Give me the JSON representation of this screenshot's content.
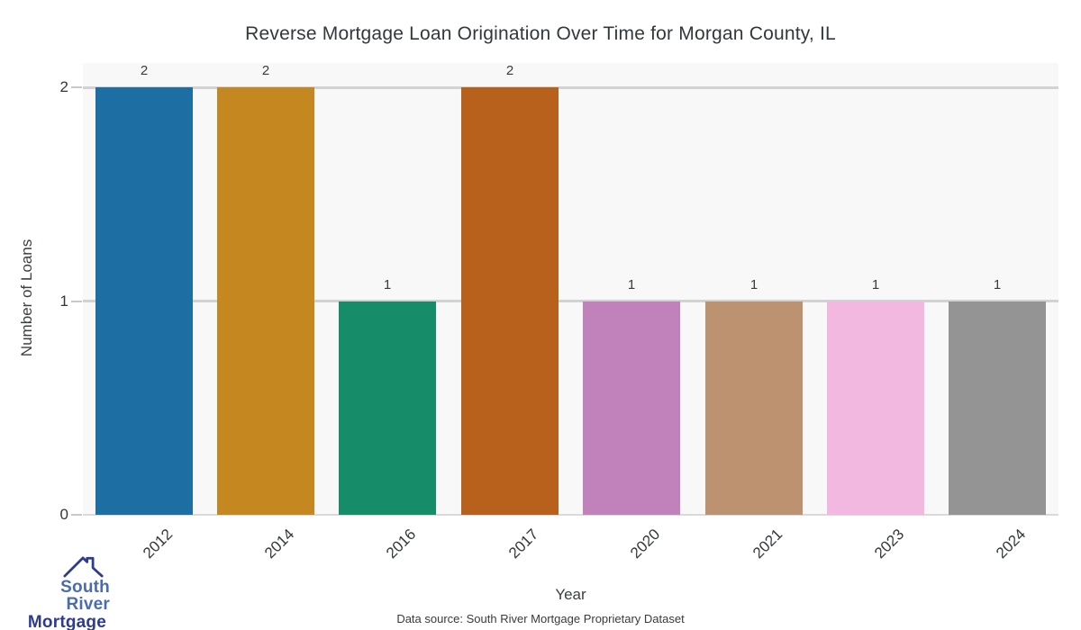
{
  "chart_data": {
    "type": "bar",
    "title": "Reverse Mortgage Loan Origination Over Time for Morgan County, IL",
    "xlabel": "Year",
    "ylabel": "Number of Loans",
    "categories": [
      "2012",
      "2014",
      "2016",
      "2017",
      "2020",
      "2021",
      "2023",
      "2024"
    ],
    "values": [
      2,
      2,
      1,
      2,
      1,
      1,
      1,
      1
    ],
    "value_labels": [
      "2",
      "2",
      "1",
      "2",
      "1",
      "1",
      "1",
      "1"
    ],
    "bar_colors": [
      "#1d6fa3",
      "#c5871f",
      "#168c69",
      "#b8611d",
      "#c181ba",
      "#bd9270",
      "#f3b8e0",
      "#949494"
    ],
    "yticks": [
      0,
      1,
      2
    ],
    "ytick_labels": [
      "0",
      "1",
      "2"
    ],
    "ylim": [
      0,
      2.114
    ],
    "grid": "horizontal",
    "legend": "none",
    "plot_bg_color": "#f8f8f8",
    "gridline_color": "#d2d2d2"
  },
  "footer": {
    "data_source": "Data source: South River Mortgage Proprietary Dataset"
  },
  "logo": {
    "line1": "South River",
    "line2": "Mortgage",
    "line1_color": "#4a6bb4",
    "line2_color": "#2e3b8f",
    "icon_color": "#2e3b8f",
    "icon": "house-roof-icon"
  }
}
